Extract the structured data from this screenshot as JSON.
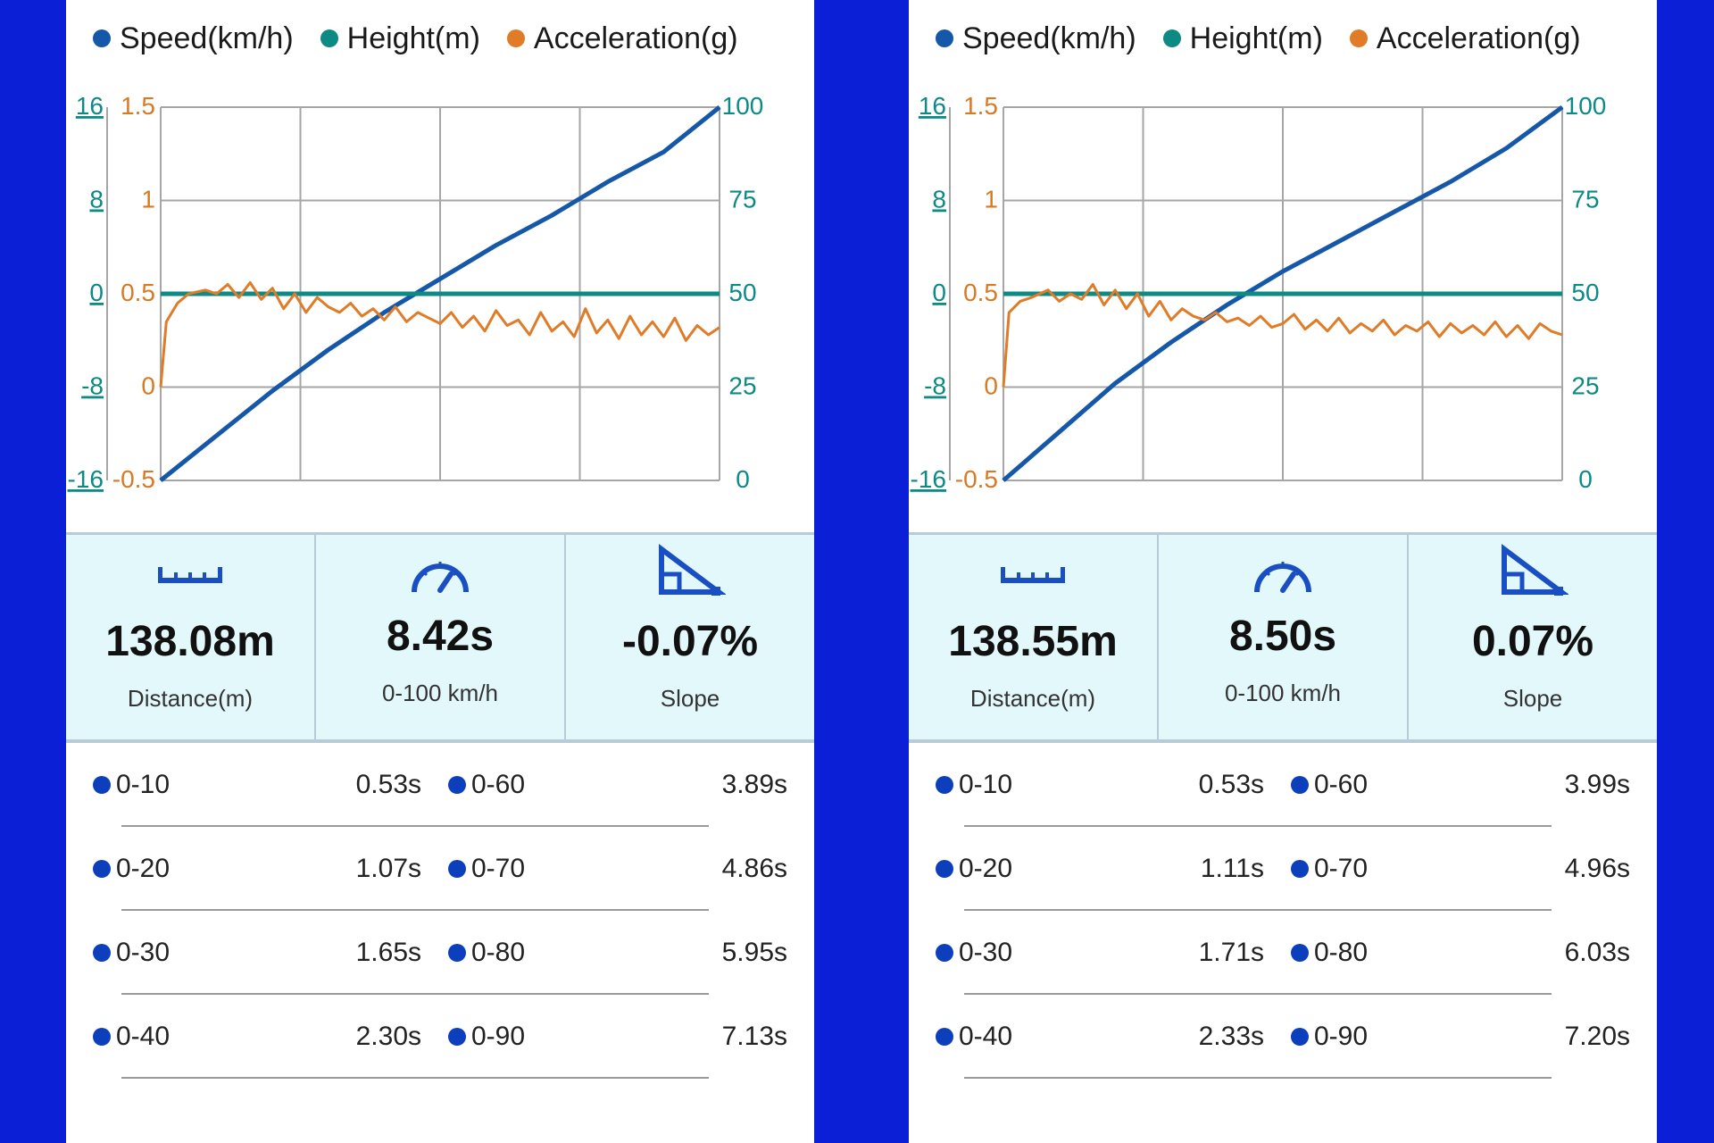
{
  "colors": {
    "speed": "#1557a8",
    "height": "#0d8a84",
    "acceleration": "#e07b28",
    "split_dot": "#0d3fbd",
    "icon": "#1a4fc4"
  },
  "panels": [
    {
      "legend": {
        "speed": "Speed(km/h)",
        "height": "Height(m)",
        "acceleration": "Acceleration(g)"
      },
      "chart_data": {
        "type": "line",
        "series": [
          {
            "name": "Speed(km/h)",
            "axis": "right",
            "x": [
              0,
              0.1,
              0.2,
              0.3,
              0.4,
              0.5,
              0.6,
              0.7,
              0.8,
              0.9,
              1.0
            ],
            "values": [
              0,
              12,
              24,
              35,
              45,
              54,
              63,
              71,
              80,
              88,
              100
            ]
          },
          {
            "name": "Height(m)",
            "axis": "left_outer",
            "x": [
              0,
              1
            ],
            "values": [
              0,
              0
            ]
          },
          {
            "name": "Acceleration(g)",
            "axis": "left_inner",
            "x": [
              0,
              0.01,
              0.03,
              0.05,
              0.08,
              0.1,
              0.12,
              0.14,
              0.16,
              0.18,
              0.2,
              0.22,
              0.24,
              0.26,
              0.28,
              0.3,
              0.32,
              0.34,
              0.36,
              0.38,
              0.4,
              0.42,
              0.44,
              0.46,
              0.48,
              0.5,
              0.52,
              0.54,
              0.56,
              0.58,
              0.6,
              0.62,
              0.64,
              0.66,
              0.68,
              0.7,
              0.72,
              0.74,
              0.76,
              0.78,
              0.8,
              0.82,
              0.84,
              0.86,
              0.88,
              0.9,
              0.92,
              0.94,
              0.96,
              0.98,
              1.0
            ],
            "values": [
              0,
              0.35,
              0.45,
              0.5,
              0.52,
              0.5,
              0.55,
              0.48,
              0.56,
              0.47,
              0.53,
              0.42,
              0.5,
              0.4,
              0.48,
              0.43,
              0.4,
              0.45,
              0.38,
              0.42,
              0.36,
              0.43,
              0.35,
              0.4,
              0.37,
              0.34,
              0.4,
              0.32,
              0.38,
              0.3,
              0.41,
              0.33,
              0.36,
              0.28,
              0.4,
              0.3,
              0.35,
              0.27,
              0.42,
              0.29,
              0.36,
              0.26,
              0.38,
              0.28,
              0.35,
              0.27,
              0.37,
              0.25,
              0.33,
              0.28,
              0.32
            ]
          }
        ],
        "axes": {
          "left_outer": {
            "ticks": [
              "16",
              "8",
              "0",
              "-8",
              "-16"
            ],
            "range": [
              -16,
              16
            ]
          },
          "left_inner": {
            "ticks": [
              "1.5",
              "1",
              "0.5",
              "0",
              "-0.5"
            ],
            "range": [
              -0.5,
              1.5
            ]
          },
          "right": {
            "ticks": [
              "100",
              "75",
              "50",
              "25",
              "0"
            ],
            "range": [
              0,
              100
            ]
          }
        },
        "grid": true
      },
      "stats": [
        {
          "icon": "ruler-icon",
          "value": "138.08m",
          "label": "Distance(m)"
        },
        {
          "icon": "speedometer-icon",
          "value": "8.42s",
          "label": "0-100 km/h"
        },
        {
          "icon": "slope-icon",
          "value": "-0.07%",
          "label": "Slope"
        }
      ],
      "splits": [
        {
          "left_label": "0-10",
          "left_time": "0.53s",
          "right_label": "0-60",
          "right_time": "3.89s"
        },
        {
          "left_label": "0-20",
          "left_time": "1.07s",
          "right_label": "0-70",
          "right_time": "4.86s"
        },
        {
          "left_label": "0-30",
          "left_time": "1.65s",
          "right_label": "0-80",
          "right_time": "5.95s"
        },
        {
          "left_label": "0-40",
          "left_time": "2.30s",
          "right_label": "0-90",
          "right_time": "7.13s"
        }
      ]
    },
    {
      "legend": {
        "speed": "Speed(km/h)",
        "height": "Height(m)",
        "acceleration": "Acceleration(g)"
      },
      "chart_data": {
        "type": "line",
        "series": [
          {
            "name": "Speed(km/h)",
            "axis": "right",
            "x": [
              0,
              0.1,
              0.2,
              0.3,
              0.4,
              0.5,
              0.6,
              0.7,
              0.8,
              0.9,
              1.0
            ],
            "values": [
              0,
              13,
              26,
              37,
              47,
              56,
              64,
              72,
              80,
              89,
              100
            ]
          },
          {
            "name": "Height(m)",
            "axis": "left_outer",
            "x": [
              0,
              1
            ],
            "values": [
              0,
              0
            ]
          },
          {
            "name": "Acceleration(g)",
            "axis": "left_inner",
            "x": [
              0,
              0.01,
              0.03,
              0.05,
              0.08,
              0.1,
              0.12,
              0.14,
              0.16,
              0.18,
              0.2,
              0.22,
              0.24,
              0.26,
              0.28,
              0.3,
              0.32,
              0.34,
              0.36,
              0.38,
              0.4,
              0.42,
              0.44,
              0.46,
              0.48,
              0.5,
              0.52,
              0.54,
              0.56,
              0.58,
              0.6,
              0.62,
              0.64,
              0.66,
              0.68,
              0.7,
              0.72,
              0.74,
              0.76,
              0.78,
              0.8,
              0.82,
              0.84,
              0.86,
              0.88,
              0.9,
              0.92,
              0.94,
              0.96,
              0.98,
              1.0
            ],
            "values": [
              0,
              0.4,
              0.46,
              0.48,
              0.52,
              0.46,
              0.5,
              0.47,
              0.55,
              0.44,
              0.52,
              0.42,
              0.5,
              0.38,
              0.46,
              0.36,
              0.42,
              0.38,
              0.36,
              0.4,
              0.35,
              0.37,
              0.33,
              0.38,
              0.32,
              0.34,
              0.39,
              0.31,
              0.36,
              0.3,
              0.37,
              0.29,
              0.34,
              0.3,
              0.36,
              0.28,
              0.33,
              0.3,
              0.35,
              0.27,
              0.34,
              0.29,
              0.33,
              0.28,
              0.35,
              0.27,
              0.33,
              0.26,
              0.34,
              0.3,
              0.28
            ]
          }
        ],
        "axes": {
          "left_outer": {
            "ticks": [
              "16",
              "8",
              "0",
              "-8",
              "-16"
            ],
            "range": [
              -16,
              16
            ]
          },
          "left_inner": {
            "ticks": [
              "1.5",
              "1",
              "0.5",
              "0",
              "-0.5"
            ],
            "range": [
              -0.5,
              1.5
            ]
          },
          "right": {
            "ticks": [
              "100",
              "75",
              "50",
              "25",
              "0"
            ],
            "range": [
              0,
              100
            ]
          }
        },
        "grid": true
      },
      "stats": [
        {
          "icon": "ruler-icon",
          "value": "138.55m",
          "label": "Distance(m)"
        },
        {
          "icon": "speedometer-icon",
          "value": "8.50s",
          "label": "0-100 km/h"
        },
        {
          "icon": "slope-icon",
          "value": "0.07%",
          "label": "Slope"
        }
      ],
      "splits": [
        {
          "left_label": "0-10",
          "left_time": "0.53s",
          "right_label": "0-60",
          "right_time": "3.99s"
        },
        {
          "left_label": "0-20",
          "left_time": "1.11s",
          "right_label": "0-70",
          "right_time": "4.96s"
        },
        {
          "left_label": "0-30",
          "left_time": "1.71s",
          "right_label": "0-80",
          "right_time": "6.03s"
        },
        {
          "left_label": "0-40",
          "left_time": "2.33s",
          "right_label": "0-90",
          "right_time": "7.20s"
        }
      ]
    }
  ]
}
